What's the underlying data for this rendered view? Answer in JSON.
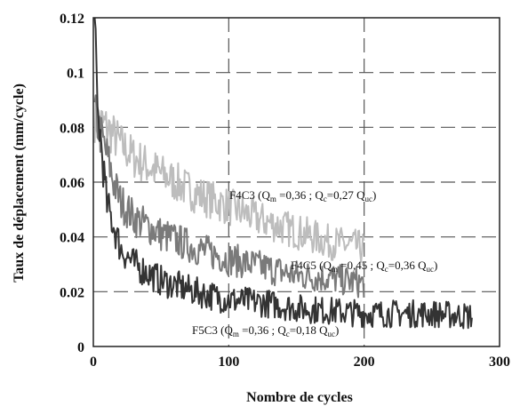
{
  "chart_data": {
    "type": "line",
    "xlabel": "Nombre de cycles",
    "ylabel": "Taux de déplacement (mm/cycle)",
    "xlim": [
      0,
      300
    ],
    "ylim": [
      0,
      0.12
    ],
    "x_ticks": [
      "0",
      "100",
      "200",
      "300"
    ],
    "y_ticks": [
      "0",
      "0.02",
      "0.04",
      "0.06",
      "0.08",
      "0.1",
      "0.12"
    ],
    "grid": true,
    "grid_style": "dashed",
    "series": [
      {
        "name": "F4C3",
        "color": "#bdbdbd",
        "x": [
          1,
          5,
          10,
          20,
          30,
          50,
          75,
          100,
          125,
          150,
          175,
          200
        ],
        "y": [
          0.083,
          0.082,
          0.08,
          0.074,
          0.069,
          0.063,
          0.056,
          0.051,
          0.046,
          0.042,
          0.038,
          0.036
        ]
      },
      {
        "name": "F4C5",
        "color": "#7a7a7a",
        "x": [
          1,
          5,
          10,
          15,
          20,
          30,
          50,
          75,
          100,
          125,
          150,
          175,
          200
        ],
        "y": [
          0.085,
          0.078,
          0.07,
          0.06,
          0.053,
          0.047,
          0.041,
          0.036,
          0.032,
          0.029,
          0.026,
          0.025,
          0.023
        ]
      },
      {
        "name": "F5C3",
        "color": "#333333",
        "x": [
          1,
          3,
          5,
          8,
          10,
          15,
          20,
          30,
          50,
          75,
          100,
          125,
          150,
          175,
          200,
          225,
          250,
          280
        ],
        "y": [
          0.118,
          0.085,
          0.078,
          0.062,
          0.052,
          0.044,
          0.036,
          0.03,
          0.024,
          0.02,
          0.017,
          0.016,
          0.014,
          0.013,
          0.012,
          0.012,
          0.012,
          0.011
        ]
      }
    ],
    "annotations": [
      {
        "text": "F4C3 (Q",
        "sub1": "m",
        "mid1": " =0,36 ; Q",
        "sub2": "c",
        "mid2": "=0,27 Q",
        "sub3": "uc",
        "end": ")"
      },
      {
        "text": "F4C5 (Q",
        "sub1": "m",
        "mid1": " =0,45 ; Q",
        "sub2": "c",
        "mid2": "=0,36 Q",
        "sub3": "uc",
        "end": ")"
      },
      {
        "text": "F5C3 (Q",
        "sub1": "m",
        "mid1": " =0,36 ; Q",
        "sub2": "c",
        "mid2": "=0,18 Q",
        "sub3": "uc",
        "end": ")"
      }
    ]
  }
}
